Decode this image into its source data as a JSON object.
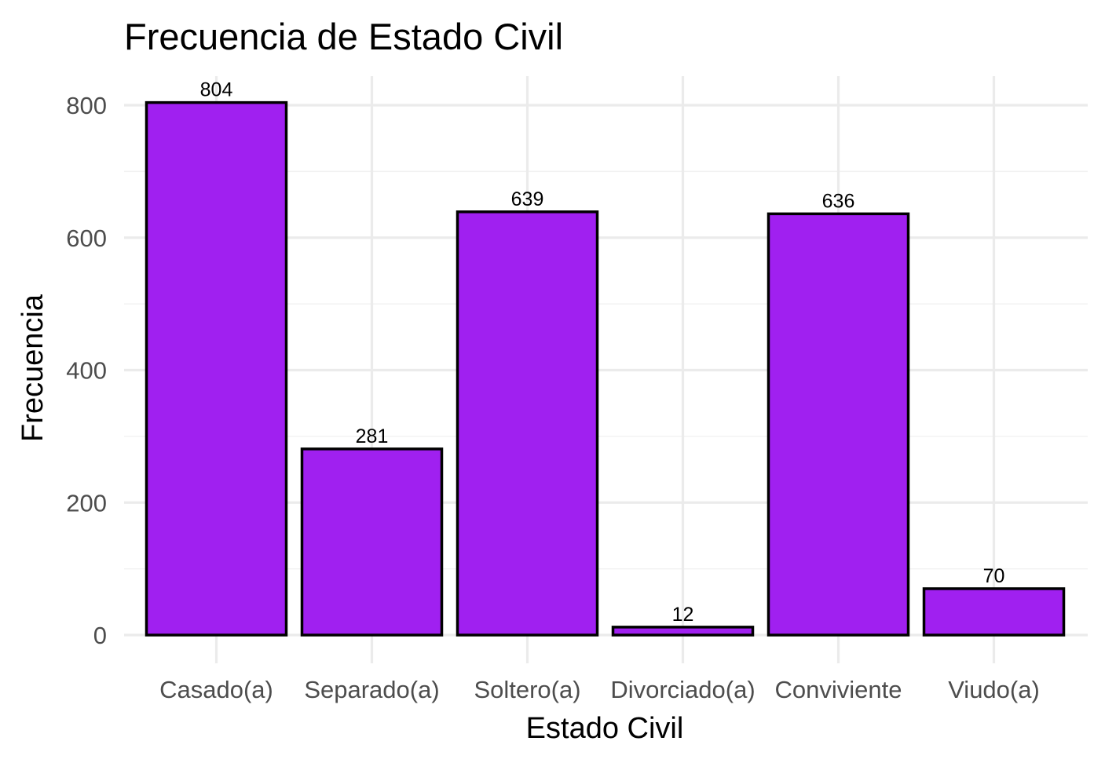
{
  "chart_data": {
    "type": "bar",
    "title": "Frecuencia de Estado Civil",
    "xlabel": "Estado Civil",
    "ylabel": "Frecuencia",
    "categories": [
      "Casado(a)",
      "Separado(a)",
      "Soltero(a)",
      "Divorciado(a)",
      "Conviviente",
      "Viudo(a)"
    ],
    "values": [
      804,
      281,
      639,
      12,
      636,
      70
    ],
    "yticks": [
      0,
      200,
      400,
      600,
      800
    ],
    "ylim": [
      0,
      804
    ],
    "grid": true,
    "bar_color": "#a020f0",
    "bar_edge_color": "#000000"
  }
}
